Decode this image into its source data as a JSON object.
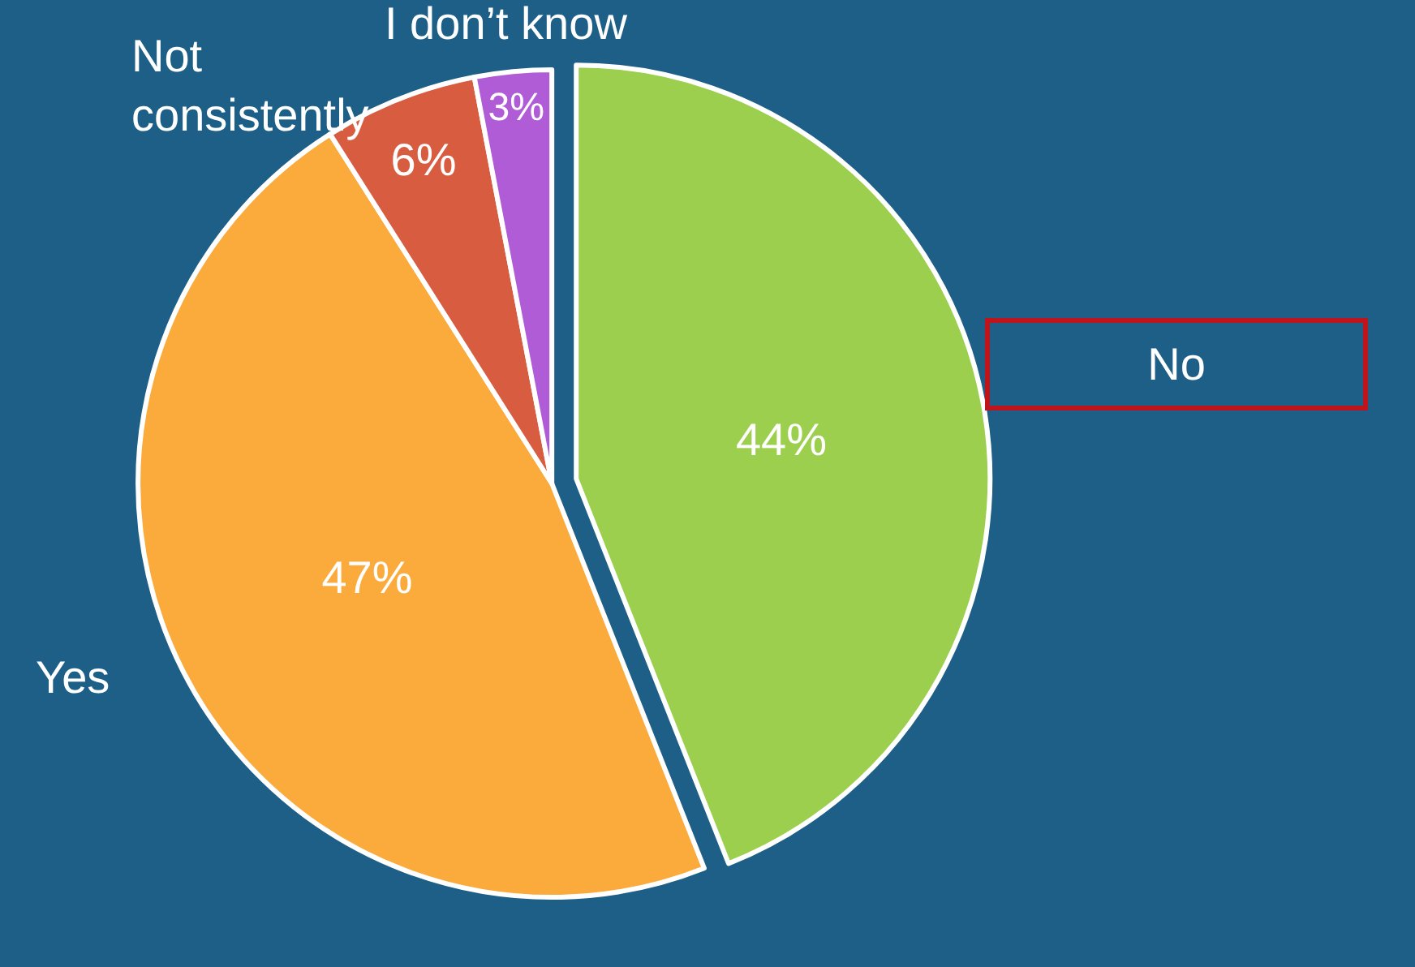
{
  "chart_data": {
    "type": "pie",
    "categories": [
      "No",
      "Yes",
      "Not consistently",
      "I don’t know"
    ],
    "values": [
      44,
      47,
      6,
      3
    ],
    "colors": [
      "#9dcf4e",
      "#fbaa3c",
      "#d75c40",
      "#b05cd6"
    ],
    "value_labels": [
      "44%",
      "47%",
      "6%",
      "3%"
    ]
  }
}
